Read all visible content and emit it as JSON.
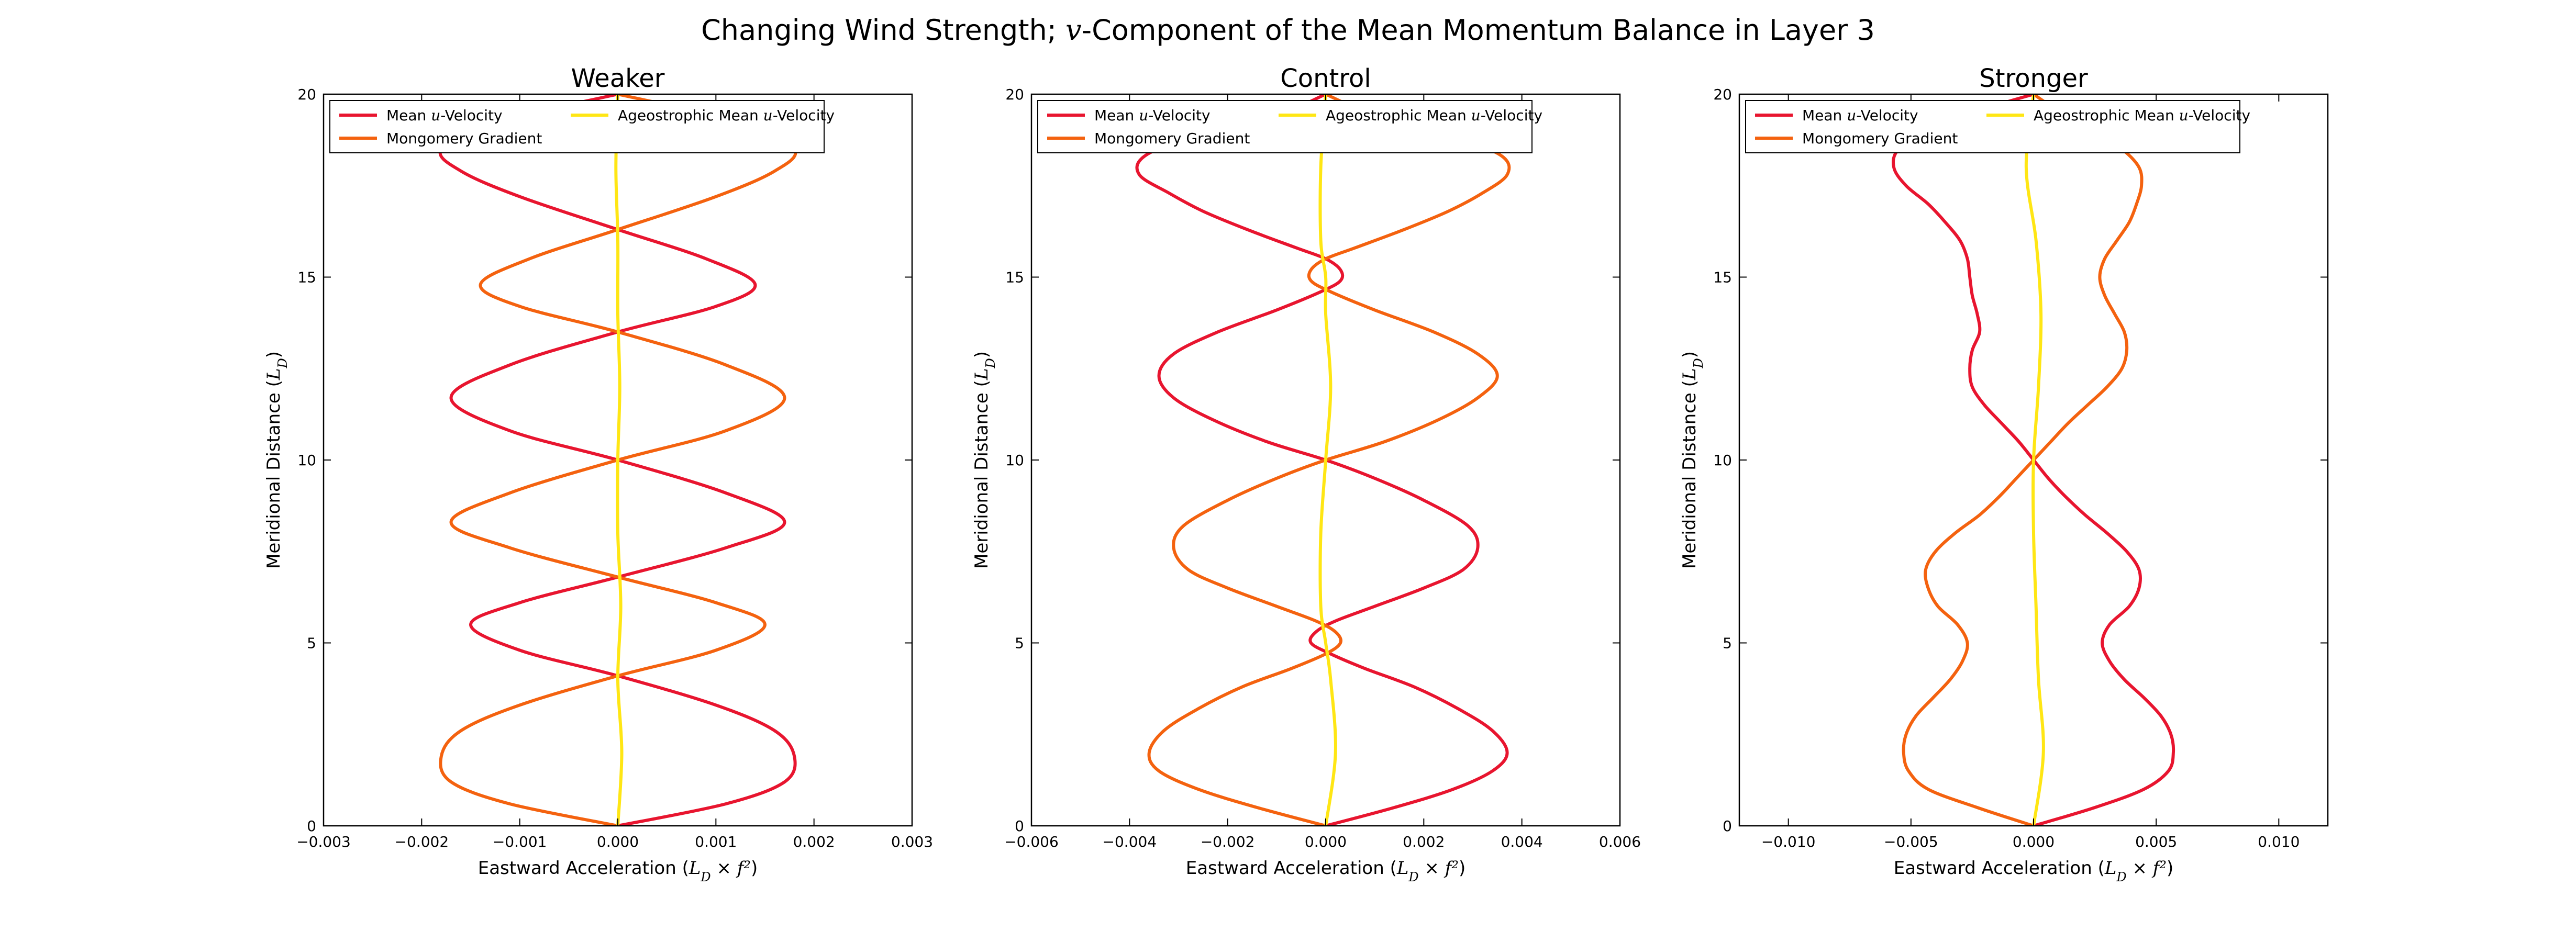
{
  "figure": {
    "suptitle": "Changing Wind Strength; v-Component of the Mean Momentum Balance in Layer 3"
  },
  "colors": {
    "mean_u_velocity": "#e8152f",
    "montgomery_gradient": "#f4620f",
    "ageostrophic": "#ffe614"
  },
  "chart_data": [
    {
      "type": "line",
      "title": "Weaker",
      "xlabel": "Eastward Acceleration (L_D × f²)",
      "ylabel": "Meridional Distance (L_D)",
      "xlim": [
        -0.003,
        0.003
      ],
      "ylim": [
        0,
        20
      ],
      "xticks": [
        "−0.003",
        "−0.002",
        "−0.001",
        "0.000",
        "0.001",
        "0.002",
        "0.003"
      ],
      "xtick_values": [
        -0.003,
        -0.002,
        -0.001,
        0.0,
        0.001,
        0.002,
        0.003
      ],
      "yticks": [
        "0",
        "5",
        "10",
        "15",
        "20"
      ],
      "ytick_values": [
        0,
        5,
        10,
        15,
        20
      ],
      "legend": {
        "position": "top-left",
        "ncol": 2,
        "entries": [
          "Mean u-Velocity",
          "Ageostrophic Mean u-Velocity",
          "Mongomery Gradient"
        ]
      },
      "series": [
        {
          "name": "Mean u-Velocity",
          "color_key": "mean_u_velocity",
          "y": [
            0,
            0.6,
            1.2,
            1.9,
            2.6,
            3.3,
            4.1,
            4.8,
            5.5,
            6.1,
            6.8,
            7.6,
            8.3,
            9.1,
            10.0,
            10.8,
            11.7,
            12.6,
            13.5,
            14.2,
            14.8,
            15.5,
            16.3,
            17.2,
            17.9,
            18.5,
            19.2,
            20.0
          ],
          "x": [
            0.0,
            0.0011,
            0.0017,
            0.0018,
            0.0016,
            0.001,
            0.0,
            -0.001,
            -0.0015,
            -0.001,
            0.0,
            0.0011,
            0.0017,
            0.0011,
            0.0,
            -0.0011,
            -0.0017,
            -0.0011,
            0.0,
            0.001,
            0.0014,
            0.0009,
            0.0,
            -0.001,
            -0.0016,
            -0.0018,
            -0.0013,
            0.0
          ]
        },
        {
          "name": "Mongomery Gradient",
          "color_key": "montgomery_gradient",
          "y": [
            0,
            0.6,
            1.2,
            1.9,
            2.6,
            3.3,
            4.1,
            4.8,
            5.5,
            6.1,
            6.8,
            7.6,
            8.3,
            9.1,
            10.0,
            10.8,
            11.7,
            12.6,
            13.5,
            14.2,
            14.8,
            15.5,
            16.3,
            17.2,
            17.9,
            18.5,
            19.2,
            20.0
          ],
          "x": [
            0.0,
            -0.0011,
            -0.0017,
            -0.0018,
            -0.0016,
            -0.001,
            0.0,
            0.001,
            0.0015,
            0.001,
            0.0,
            -0.0011,
            -0.0017,
            -0.0011,
            0.0,
            0.0011,
            0.0017,
            0.0011,
            0.0,
            -0.001,
            -0.0014,
            -0.0009,
            0.0,
            0.001,
            0.0016,
            0.0018,
            0.0013,
            0.0
          ]
        },
        {
          "name": "Ageostrophic Mean u-Velocity",
          "color_key": "ageostrophic",
          "y": [
            0,
            2,
            4,
            6,
            8,
            10,
            12,
            14,
            16,
            18,
            20
          ],
          "x": [
            0.0,
            4e-05,
            0.0,
            3e-05,
            0.0,
            0.0,
            2e-05,
            0.0,
            0.0,
            -2e-05,
            0.0
          ]
        }
      ]
    },
    {
      "type": "line",
      "title": "Control",
      "xlabel": "Eastward Acceleration (L_D × f²)",
      "ylabel": "Meridional Distance (L_D)",
      "xlim": [
        -0.006,
        0.006
      ],
      "ylim": [
        0,
        20
      ],
      "xticks": [
        "−0.006",
        "−0.004",
        "−0.002",
        "0.000",
        "0.002",
        "0.004",
        "0.006"
      ],
      "xtick_values": [
        -0.006,
        -0.004,
        -0.002,
        0.0,
        0.002,
        0.004,
        0.006
      ],
      "yticks": [
        "0",
        "5",
        "10",
        "15",
        "20"
      ],
      "ytick_values": [
        0,
        5,
        10,
        15,
        20
      ],
      "legend": {
        "position": "top-left",
        "ncol": 2,
        "entries": [
          "Mean u-Velocity",
          "Ageostrophic Mean u-Velocity",
          "Mongomery Gradient"
        ]
      },
      "series": [
        {
          "name": "Mean u-Velocity",
          "color_key": "mean_u_velocity",
          "y": [
            0,
            0.5,
            1.0,
            1.5,
            2.0,
            2.6,
            3.2,
            3.8,
            4.3,
            4.7,
            5.0,
            5.3,
            5.6,
            6.0,
            6.5,
            7.0,
            7.6,
            8.2,
            8.9,
            9.5,
            10.0,
            10.5,
            11.1,
            11.7,
            12.3,
            12.9,
            13.5,
            14.1,
            14.6,
            14.9,
            15.2,
            15.5,
            15.8,
            16.3,
            16.8,
            17.3,
            17.8,
            18.3,
            18.8,
            19.3,
            20.0
          ],
          "x": [
            0.0,
            0.0014,
            0.0026,
            0.0034,
            0.0037,
            0.0034,
            0.0027,
            0.0018,
            0.0008,
            0.0001,
            -0.0003,
            -0.0002,
            0.0002,
            0.001,
            0.002,
            0.0028,
            0.0031,
            0.0029,
            0.002,
            0.001,
            0.0,
            -0.0012,
            -0.0023,
            -0.0031,
            -0.0034,
            -0.0031,
            -0.0022,
            -0.001,
            -0.0001,
            0.0003,
            0.0003,
            0.0,
            -0.0006,
            -0.0016,
            -0.0025,
            -0.0032,
            -0.0038,
            -0.0037,
            -0.0028,
            -0.0012,
            0.0
          ]
        },
        {
          "name": "Mongomery Gradient",
          "color_key": "montgomery_gradient",
          "y": [
            0,
            0.5,
            1.0,
            1.5,
            2.0,
            2.6,
            3.2,
            3.8,
            4.3,
            4.7,
            5.0,
            5.3,
            5.6,
            6.0,
            6.5,
            7.0,
            7.6,
            8.2,
            8.9,
            9.5,
            10.0,
            10.5,
            11.1,
            11.7,
            12.3,
            12.9,
            13.5,
            14.1,
            14.6,
            14.9,
            15.2,
            15.5,
            15.8,
            16.3,
            16.8,
            17.3,
            17.8,
            18.3,
            18.8,
            19.3,
            20.0
          ],
          "x": [
            0.0,
            -0.0014,
            -0.0026,
            -0.0034,
            -0.0036,
            -0.0033,
            -0.0026,
            -0.0017,
            -0.0007,
            0.0,
            0.0003,
            0.0002,
            -0.0002,
            -0.001,
            -0.002,
            -0.0028,
            -0.0031,
            -0.0029,
            -0.002,
            -0.001,
            0.0,
            0.0012,
            0.0023,
            0.0031,
            0.0035,
            0.0031,
            0.0022,
            0.001,
            0.0001,
            -0.0003,
            -0.0003,
            0.0,
            0.0006,
            0.0016,
            0.0025,
            0.0032,
            0.0037,
            0.0036,
            0.0027,
            0.0012,
            0.0
          ]
        },
        {
          "name": "Ageostrophic Mean u-Velocity",
          "color_key": "ageostrophic",
          "y": [
            0,
            2,
            4,
            5,
            6,
            8,
            10,
            12,
            14,
            15,
            16,
            18,
            20
          ],
          "x": [
            0.0,
            0.0002,
            0.0001,
            0.0,
            -0.0001,
            -0.0001,
            0.0,
            0.0001,
            0.0,
            0.0,
            -0.0001,
            -0.0001,
            0.0
          ]
        }
      ]
    },
    {
      "type": "line",
      "title": "Stronger",
      "xlabel": "Eastward Acceleration (L_D × f²)",
      "ylabel": "Meridional Distance (L_D)",
      "xlim": [
        -0.012,
        0.012
      ],
      "ylim": [
        0,
        20
      ],
      "xticks": [
        "−0.010",
        "−0.005",
        "0.000",
        "0.005",
        "0.010"
      ],
      "xtick_values": [
        -0.01,
        -0.005,
        0.0,
        0.005,
        0.01
      ],
      "yticks": [
        "0",
        "5",
        "10",
        "15",
        "20"
      ],
      "ytick_values": [
        0,
        5,
        10,
        15,
        20
      ],
      "legend": {
        "position": "top-left",
        "ncol": 2,
        "entries": [
          "Mean u-Velocity",
          "Ageostrophic Mean u-Velocity",
          "Mongomery Gradient"
        ]
      },
      "series": [
        {
          "name": "Mean u-Velocity",
          "color_key": "mean_u_velocity",
          "y": [
            0,
            0.5,
            1.0,
            1.5,
            2.0,
            2.5,
            3.0,
            3.5,
            4.0,
            4.5,
            5.0,
            5.5,
            6.0,
            6.5,
            7.0,
            7.5,
            8.0,
            8.5,
            9.0,
            9.5,
            10.0,
            10.5,
            11.0,
            11.5,
            12.0,
            12.5,
            13.0,
            13.5,
            14.0,
            14.5,
            15.0,
            15.5,
            16.0,
            16.5,
            17.0,
            17.5,
            18.0,
            18.5,
            19.0,
            19.5,
            20.0
          ],
          "x": [
            0.0,
            0.0025,
            0.0045,
            0.0055,
            0.0057,
            0.0056,
            0.0052,
            0.0045,
            0.0037,
            0.0031,
            0.0028,
            0.0031,
            0.0039,
            0.0043,
            0.0043,
            0.0038,
            0.003,
            0.0021,
            0.0013,
            0.0006,
            0.0,
            -0.0006,
            -0.0013,
            -0.002,
            -0.0025,
            -0.0026,
            -0.0025,
            -0.0022,
            -0.0023,
            -0.0025,
            -0.0026,
            -0.0027,
            -0.003,
            -0.0036,
            -0.0043,
            -0.0052,
            -0.0057,
            -0.0055,
            -0.0043,
            -0.0025,
            0.0
          ]
        },
        {
          "name": "Mongomery Gradient",
          "color_key": "montgomery_gradient",
          "y": [
            0,
            0.5,
            1.0,
            1.5,
            2.0,
            2.5,
            3.0,
            3.5,
            4.0,
            4.5,
            5.0,
            5.5,
            6.0,
            6.5,
            7.0,
            7.5,
            8.0,
            8.5,
            9.0,
            9.5,
            10.0,
            10.5,
            11.0,
            11.5,
            12.0,
            12.5,
            13.0,
            13.5,
            14.0,
            14.5,
            15.0,
            15.5,
            16.0,
            16.5,
            17.0,
            17.5,
            18.0,
            18.5,
            19.0,
            19.5,
            20.0
          ],
          "x": [
            0.0,
            -0.0023,
            -0.0043,
            -0.0051,
            -0.0053,
            -0.0052,
            -0.0048,
            -0.0041,
            -0.0034,
            -0.0029,
            -0.0027,
            -0.0031,
            -0.0039,
            -0.0043,
            -0.0044,
            -0.004,
            -0.0032,
            -0.0022,
            -0.0014,
            -0.0007,
            0.0,
            0.0007,
            0.0014,
            0.0022,
            0.003,
            0.0036,
            0.0038,
            0.0037,
            0.0033,
            0.0029,
            0.0027,
            0.0029,
            0.0034,
            0.0039,
            0.0042,
            0.0044,
            0.0043,
            0.0036,
            0.0024,
            0.0011,
            0.0
          ]
        },
        {
          "name": "Ageostrophic Mean u-Velocity",
          "color_key": "ageostrophic",
          "y": [
            0,
            2,
            4,
            6,
            8,
            10,
            12,
            14,
            16,
            18,
            20
          ],
          "x": [
            0.0,
            0.0004,
            0.0002,
            0.0001,
            0.0,
            0.0,
            0.0002,
            0.0003,
            0.0001,
            -0.0003,
            0.0
          ]
        }
      ]
    }
  ]
}
